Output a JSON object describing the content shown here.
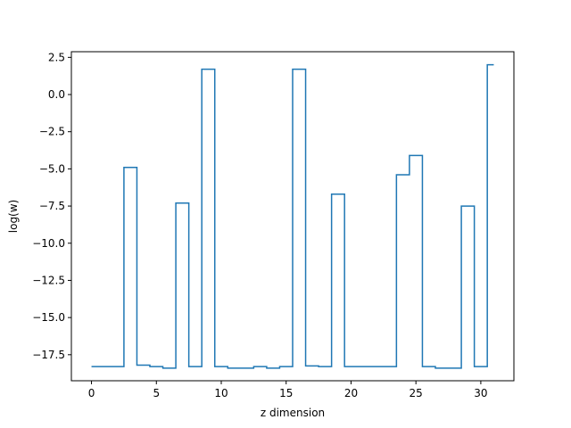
{
  "chart_data": {
    "type": "line",
    "drawstyle": "steps-mid",
    "xlabel": "z dimension",
    "ylabel": "log(w)",
    "xlim": [
      -1.55,
      32.55
    ],
    "ylim": [
      -19.25,
      2.88
    ],
    "xticks": [
      0,
      5,
      10,
      15,
      20,
      25,
      30
    ],
    "yticks": [
      2.5,
      0.0,
      -2.5,
      -5.0,
      -7.5,
      -10.0,
      -12.5,
      -15.0,
      -17.5
    ],
    "ytick_labels": [
      "2.5",
      "0.0",
      "−2.5",
      "−5.0",
      "−7.5",
      "−10.0",
      "−12.5",
      "−15.0",
      "−17.5"
    ],
    "grid": false,
    "series": [
      {
        "color": "#1f77b4",
        "x": [
          0,
          1,
          2,
          3,
          4,
          5,
          6,
          7,
          8,
          9,
          10,
          11,
          12,
          13,
          14,
          15,
          16,
          17,
          18,
          19,
          20,
          21,
          22,
          23,
          24,
          25,
          26,
          27,
          28,
          29,
          30,
          31
        ],
        "y": [
          -18.3,
          -18.3,
          -18.3,
          -4.9,
          -18.2,
          -18.3,
          -18.4,
          -7.3,
          -18.3,
          1.7,
          -18.3,
          -18.4,
          -18.4,
          -18.3,
          -18.4,
          -18.3,
          1.7,
          -18.25,
          -18.3,
          -6.7,
          -18.3,
          -18.3,
          -18.3,
          -18.3,
          -5.4,
          -4.1,
          -18.3,
          -18.4,
          -18.4,
          -7.5,
          -18.3,
          2.0
        ]
      }
    ]
  }
}
